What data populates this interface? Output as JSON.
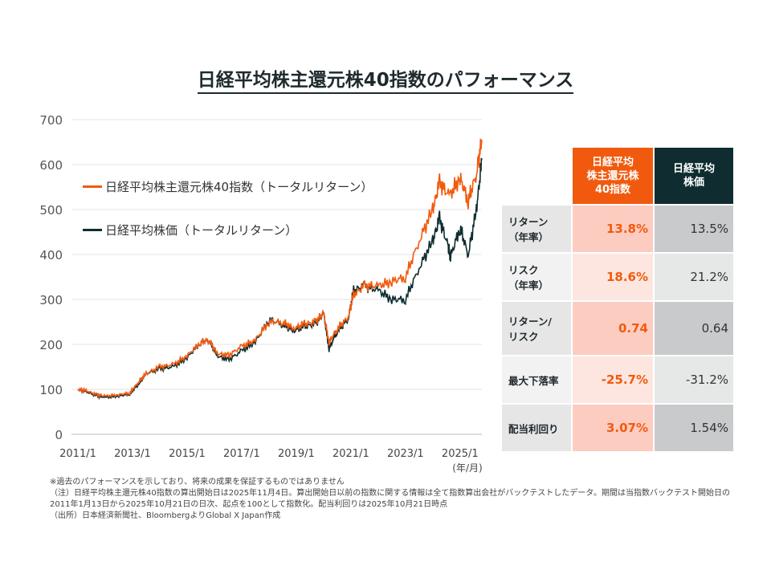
{
  "title": "日経平均株主還元株40指数のパフォーマンス",
  "chart_data": {
    "type": "line",
    "title": "日経平均株主還元株40指数のパフォーマンス",
    "xlabel": "(年/月)",
    "ylim": [
      0,
      700
    ],
    "yticks": [
      0,
      100,
      200,
      300,
      400,
      500,
      600,
      700
    ],
    "xticks": [
      "2011/1",
      "2013/1",
      "2015/1",
      "2017/1",
      "2019/1",
      "2021/1",
      "2023/1",
      "2025/1"
    ],
    "xrange": [
      2011.0,
      2025.8
    ],
    "grid": true,
    "legend_position": "top-left",
    "series": [
      {
        "name": "日経平均株主還元株40指数（トータルリターン）",
        "color": "#f15a0e",
        "x": [
          2011.0,
          2011.3,
          2011.7,
          2012.0,
          2012.5,
          2012.9,
          2013.2,
          2013.5,
          2014.0,
          2014.5,
          2015.0,
          2015.5,
          2015.8,
          2016.1,
          2016.5,
          2017.0,
          2017.5,
          2018.0,
          2018.5,
          2018.9,
          2019.3,
          2019.7,
          2020.0,
          2020.2,
          2020.5,
          2020.9,
          2021.1,
          2021.5,
          2022.0,
          2022.5,
          2023.0,
          2023.5,
          2024.0,
          2024.25,
          2024.6,
          2025.0,
          2025.3,
          2025.6,
          2025.8
        ],
        "y": [
          100,
          97,
          88,
          85,
          88,
          92,
          115,
          135,
          150,
          155,
          175,
          205,
          210,
          180,
          175,
          195,
          210,
          250,
          250,
          235,
          245,
          250,
          270,
          205,
          235,
          260,
          310,
          330,
          330,
          340,
          350,
          430,
          500,
          560,
          530,
          570,
          520,
          580,
          655
        ]
      },
      {
        "name": "日経平均株価（トータルリターン）",
        "color": "#0f2d30",
        "x": [
          2011.0,
          2011.3,
          2011.7,
          2012.0,
          2012.5,
          2012.9,
          2013.2,
          2013.5,
          2014.0,
          2014.5,
          2015.0,
          2015.5,
          2015.8,
          2016.1,
          2016.5,
          2017.0,
          2017.5,
          2018.0,
          2018.5,
          2018.9,
          2019.3,
          2019.7,
          2020.0,
          2020.2,
          2020.5,
          2020.9,
          2021.1,
          2021.5,
          2022.0,
          2022.5,
          2023.0,
          2023.5,
          2024.0,
          2024.25,
          2024.55,
          2024.65,
          2025.0,
          2025.3,
          2025.6,
          2025.8
        ],
        "y": [
          100,
          95,
          85,
          82,
          85,
          90,
          110,
          135,
          145,
          150,
          170,
          205,
          210,
          175,
          165,
          185,
          205,
          255,
          245,
          230,
          240,
          245,
          270,
          190,
          230,
          255,
          320,
          330,
          320,
          300,
          300,
          370,
          430,
          480,
          420,
          395,
          460,
          400,
          500,
          610
        ]
      }
    ]
  },
  "table": {
    "headers": [
      "日経平均\n株主還元株\n40指数",
      "日経平均\n株価"
    ],
    "rows": [
      {
        "label": "リターン\n（年率）",
        "a": "13.8%",
        "b": "13.5%"
      },
      {
        "label": "リスク\n（年率）",
        "a": "18.6%",
        "b": "21.2%"
      },
      {
        "label": "リターン/\nリスク",
        "a": "0.74",
        "b": "0.64"
      },
      {
        "label": "最大下落率",
        "a": "-25.7%",
        "b": "-31.2%"
      },
      {
        "label": "配当利回り",
        "a": "3.07%",
        "b": "1.54%"
      }
    ]
  },
  "notes": [
    "※過去のパフォーマンスを示しており、将来の成果を保証するものではありません",
    "（注）日経平均株主還元株40指数の算出開始日は2025年11月4日。算出開始日以前の指数に関する情報は全て指数算出会社がバックテストしたデータ。期間は当指数バックテスト開始日の2011年1月13日から2025年10月21日の日次、起点を100として指数化。配当利回りは2025年10月21日時点",
    "（出所）日本経済新聞社、BloombergよりGlobal X Japan作成"
  ]
}
